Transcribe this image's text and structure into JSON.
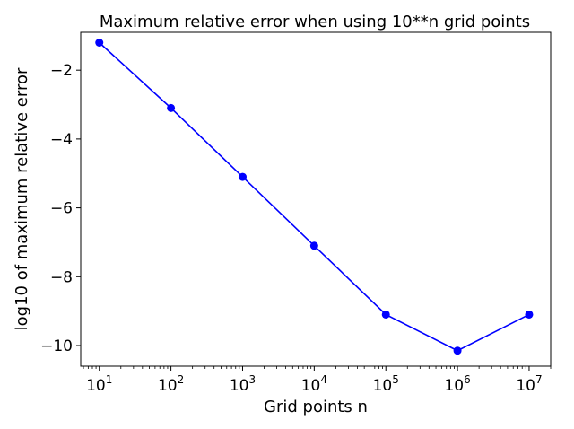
{
  "chart_data": {
    "type": "line",
    "title": "Maximum relative error when using 10**n grid points",
    "xlabel": "Grid points n",
    "ylabel": "log10 of maximum relative error",
    "xscale": "log",
    "xlim": [
      5.5,
      20000000
    ],
    "ylim": [
      -10.6,
      -0.9
    ],
    "grid": false,
    "x": [
      10,
      100,
      1000,
      10000,
      100000,
      1000000,
      10000000
    ],
    "series": [
      {
        "values": [
          -1.2,
          -3.1,
          -5.1,
          -7.1,
          -9.1,
          -10.15,
          -9.1
        ],
        "color": "#0000ff",
        "marker": "circle"
      }
    ],
    "xticks": [
      {
        "value": 10,
        "base": "10",
        "exp": "1"
      },
      {
        "value": 100,
        "base": "10",
        "exp": "2"
      },
      {
        "value": 1000,
        "base": "10",
        "exp": "3"
      },
      {
        "value": 10000,
        "base": "10",
        "exp": "4"
      },
      {
        "value": 100000,
        "base": "10",
        "exp": "5"
      },
      {
        "value": 1000000,
        "base": "10",
        "exp": "6"
      },
      {
        "value": 10000000,
        "base": "10",
        "exp": "7"
      }
    ],
    "yticks": [
      {
        "value": -2,
        "label": "−2"
      },
      {
        "value": -4,
        "label": "−4"
      },
      {
        "value": -6,
        "label": "−6"
      },
      {
        "value": -8,
        "label": "−8"
      },
      {
        "value": -10,
        "label": "−10"
      }
    ]
  }
}
